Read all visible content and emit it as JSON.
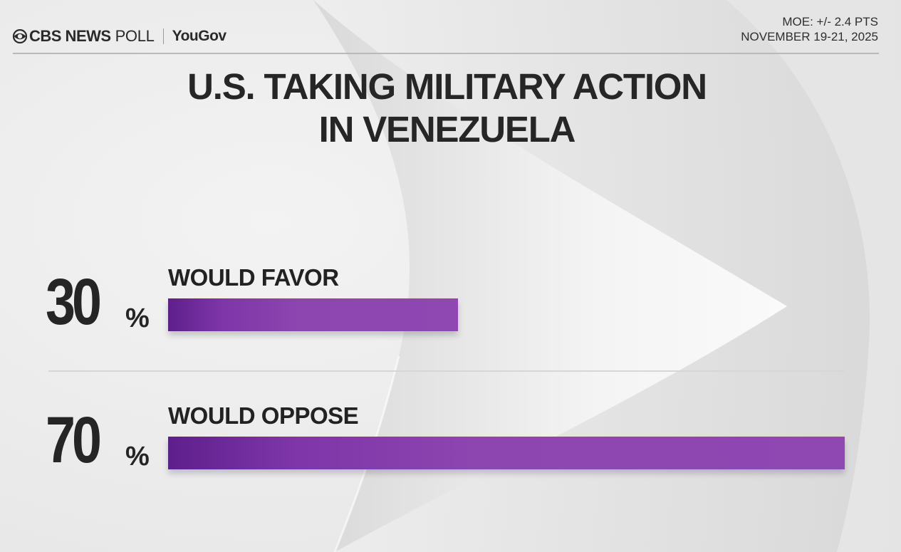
{
  "header": {
    "brand": "CBS NEWS",
    "brand_suffix": "POLL",
    "partner": "YouGov",
    "moe": "MOE: +/- 2.4 PTS",
    "dates": "NOVEMBER 19-21, 2025"
  },
  "chart_data": {
    "type": "bar",
    "orientation": "horizontal",
    "title": "U.S. TAKING MILITARY ACTION IN VENEZUELA",
    "title_lines": [
      "U.S. TAKING MILITARY ACTION",
      "IN VENEZUELA"
    ],
    "categories": [
      "WOULD FAVOR",
      "WOULD OPPOSE"
    ],
    "values": [
      30,
      70
    ],
    "value_labels": [
      "30",
      "70"
    ],
    "unit": "%",
    "xlim": [
      0,
      70
    ],
    "grid": false,
    "legend": "none",
    "colors": {
      "bar": "#8f48b2",
      "bar_dark": "#5e1f8c"
    }
  }
}
